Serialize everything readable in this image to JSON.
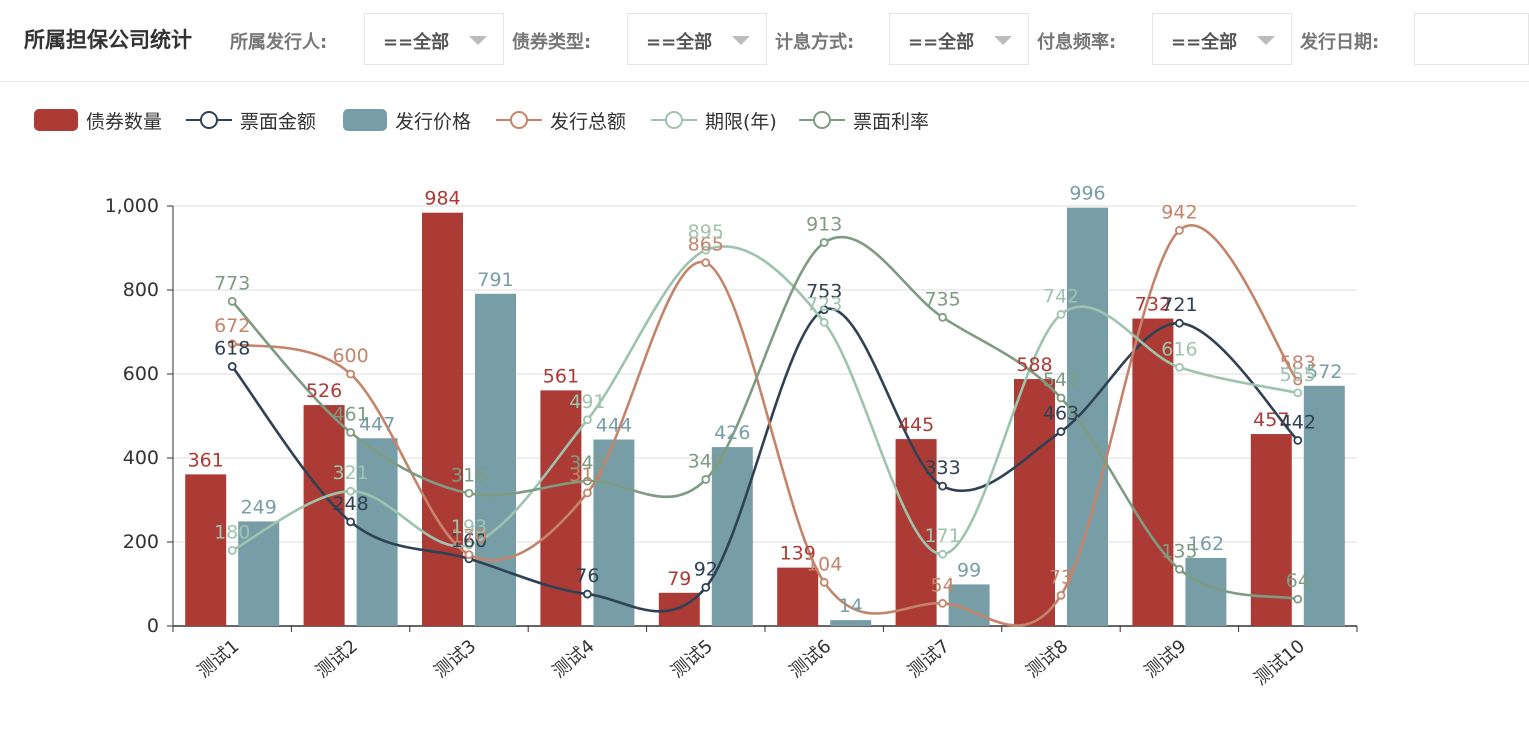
{
  "header": {
    "title": "所属担保公司统计",
    "filters": [
      {
        "label": "所属发行人:",
        "value": "==全部"
      },
      {
        "label": "债券类型:",
        "value": "==全部"
      },
      {
        "label": "计息方式:",
        "value": "==全部"
      },
      {
        "label": "付息频率:",
        "value": "==全部"
      },
      {
        "label": "发行日期:",
        "value": ""
      }
    ]
  },
  "legend": [
    {
      "label": "债券数量",
      "kind": "bar",
      "color": "#ad3b35"
    },
    {
      "label": "票面金额",
      "kind": "line",
      "color": "#2f4154"
    },
    {
      "label": "发行价格",
      "kind": "bar",
      "color": "#779ea6"
    },
    {
      "label": "发行总额",
      "kind": "line",
      "color": "#c5846a"
    },
    {
      "label": "期限(年)",
      "kind": "line",
      "color": "#9ec4ae"
    },
    {
      "label": "票面利率",
      "kind": "line",
      "color": "#7e9c82"
    }
  ],
  "chart_data": {
    "type": "bar",
    "categories": [
      "测试1",
      "测试2",
      "测试3",
      "测试4",
      "测试5",
      "测试6",
      "测试7",
      "测试8",
      "测试9",
      "测试10"
    ],
    "ylim": [
      0,
      1000
    ],
    "yticks": [
      "0",
      "200",
      "400",
      "600",
      "800",
      "1,000"
    ],
    "grid": true,
    "legend_position": "top-left",
    "series": [
      {
        "name": "债券数量",
        "type": "bar",
        "color": "#ad3b35",
        "values": [
          361,
          526,
          984,
          561,
          79,
          139,
          445,
          588,
          732,
          457
        ]
      },
      {
        "name": "发行价格",
        "type": "bar",
        "color": "#779ea6",
        "values": [
          249,
          447,
          791,
          444,
          426,
          14,
          99,
          996,
          162,
          572
        ]
      },
      {
        "name": "票面金额",
        "type": "line",
        "color": "#2f4154",
        "values": [
          618,
          248,
          160,
          76,
          92,
          753,
          333,
          463,
          721,
          442
        ]
      },
      {
        "name": "发行总额",
        "type": "line",
        "color": "#c5846a",
        "values": [
          672,
          600,
          170,
          317,
          865,
          104,
          54,
          73,
          942,
          583
        ]
      },
      {
        "name": "期限(年)",
        "type": "line",
        "color": "#9ec4ae",
        "values": [
          180,
          321,
          193,
          491,
          895,
          723,
          171,
          742,
          616,
          555
        ]
      },
      {
        "name": "票面利率",
        "type": "line",
        "color": "#7e9c82",
        "values": [
          773,
          461,
          316,
          345,
          349,
          913,
          735,
          543,
          135,
          64
        ]
      }
    ]
  }
}
